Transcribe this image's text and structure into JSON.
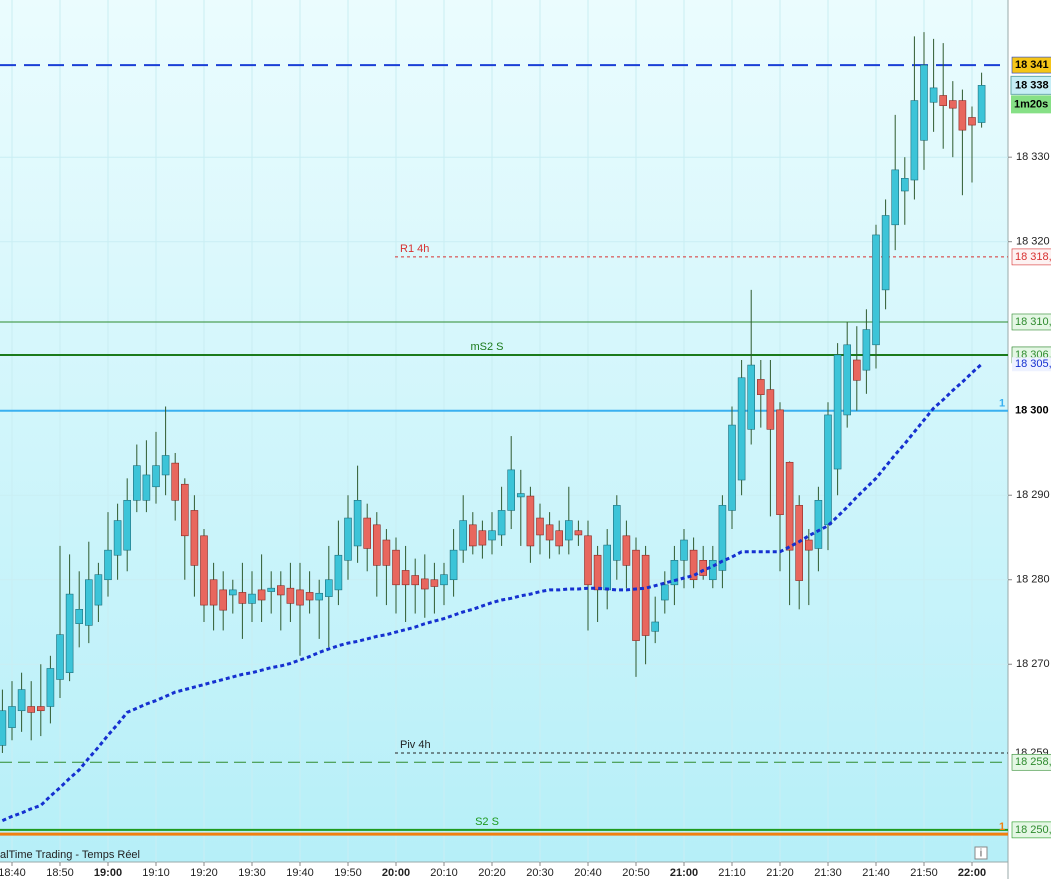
{
  "chart_data": {
    "type": "candlestick",
    "footer": "alTime Trading - Temps Réel",
    "info_icon": "i",
    "timer": "1m20s",
    "up_color": "#3cc4d8",
    "down_color": "#e8675e",
    "wick_color": "#2f5a2f",
    "grid": true,
    "ylim": [
      18246.6,
      18348.6
    ],
    "yticks": [
      {
        "value": 18330,
        "label": "18 330"
      },
      {
        "value": 18320,
        "label": "18 320"
      },
      {
        "value": 18290,
        "label": "18 290"
      },
      {
        "value": 18280,
        "label": "18 280"
      },
      {
        "value": 18270,
        "label": "18 270"
      }
    ],
    "categories": [
      null,
      "18:40",
      null,
      null,
      null,
      null,
      "18:50",
      null,
      null,
      null,
      null,
      "19:00",
      null,
      null,
      null,
      null,
      "19:10",
      null,
      null,
      null,
      null,
      "19:20",
      null,
      null,
      null,
      null,
      "19:30",
      null,
      null,
      null,
      null,
      "19:40",
      null,
      null,
      null,
      null,
      "19:50",
      null,
      null,
      null,
      null,
      "20:00",
      null,
      null,
      null,
      null,
      "20:10",
      null,
      null,
      null,
      null,
      "20:20",
      null,
      null,
      null,
      null,
      "20:30",
      null,
      null,
      null,
      null,
      "20:40",
      null,
      null,
      null,
      null,
      "20:50",
      null,
      null,
      null,
      null,
      "21:00",
      null,
      null,
      null,
      null,
      "21:10",
      null,
      null,
      null,
      null,
      "21:20",
      null,
      null,
      null,
      null,
      "21:30",
      null,
      null,
      null,
      null,
      "21:40",
      null,
      null,
      null,
      null,
      "21:50",
      null,
      null,
      null,
      null,
      "22:00",
      null
    ],
    "open": [
      18260.4,
      18262.5,
      18264.5,
      18265,
      18265,
      18265,
      18268.2,
      18269,
      18274.8,
      18274.6,
      18277,
      18280,
      18282.9,
      18283.5,
      18289.4,
      18289.4,
      18291,
      18292.4,
      18293.8,
      18291.3,
      18288.2,
      18285.2,
      18280,
      18278.8,
      18278.2,
      18278.5,
      18277.2,
      18278.8,
      18278.6,
      18279.3,
      18279,
      18278.8,
      18278.5,
      18277.6,
      18278,
      18278.8,
      18282.3,
      18284,
      18287.3,
      18286.5,
      18284.7,
      18283.5,
      18281.1,
      18280.5,
      18280.1,
      18280,
      18279.4,
      18280,
      18283.5,
      18286.5,
      18285.8,
      18284.7,
      18285.3,
      18288.2,
      18289.8,
      18289.9,
      18287.3,
      18286.5,
      18285.8,
      18284.7,
      18285.8,
      18285.2,
      18282.9,
      18278.8,
      18282.3,
      18285.2,
      18283.5,
      18282.9,
      18273.9,
      18277.6,
      18279.4,
      18282.3,
      18283.5,
      18282.3,
      18280,
      18281.1,
      18288.2,
      18291.8,
      18297.8,
      18303.7,
      18302.5,
      18300.1,
      18293.9,
      18288.8,
      18284.7,
      18283.7,
      18286.5,
      18293.1,
      18299.5,
      18306,
      18304.8,
      18307.8,
      18314.3,
      18322,
      18326,
      18327.3,
      18332,
      18336.5,
      18337.3,
      18336.7,
      18336.7,
      18334.7,
      18334.1
    ],
    "high": [
      18267,
      18268,
      18269,
      18268,
      18270,
      18271,
      18284,
      18283,
      18281,
      18284.5,
      18282,
      18288,
      18289,
      18292,
      18296,
      18296.5,
      18297.5,
      18300.5,
      18295,
      18292,
      18290,
      18286,
      18282,
      18281,
      18280,
      18282,
      18281,
      18283,
      18281,
      18281,
      18282,
      18282,
      18281,
      18280,
      18284,
      18287,
      18290,
      18293.5,
      18289,
      18288,
      18286,
      18285,
      18284,
      18282.5,
      18283,
      18282,
      18282,
      18286,
      18290,
      18288,
      18287,
      18288,
      18291,
      18297,
      18293,
      18291,
      18289,
      18288,
      18287,
      18291,
      18287,
      18287,
      18284,
      18286,
      18290,
      18287,
      18285,
      18284,
      18278,
      18281,
      18284,
      18286,
      18285,
      18284,
      18284,
      18290,
      18300.5,
      18306,
      18314.3,
      18306,
      18306,
      18301,
      18294,
      18290,
      18286,
      18291,
      18301,
      18308,
      18310.5,
      18310,
      18312,
      18322,
      18325,
      18335,
      18330,
      18344.3,
      18344.8,
      18344,
      18343.5,
      18339,
      18338,
      18336,
      18340
    ],
    "low": [
      18259.5,
      18261,
      18262,
      18261,
      18261.5,
      18263,
      18266,
      18268,
      18272,
      18272.5,
      18275,
      18278,
      18280,
      18281,
      18288,
      18288,
      18289,
      18290,
      18287,
      18280,
      18278,
      18275,
      18274,
      18274,
      18276,
      18273,
      18275,
      18275,
      18276,
      18274,
      18275,
      18271,
      18276,
      18273,
      18272,
      18277,
      18280,
      18282,
      18281,
      18278,
      18277,
      18276,
      18275,
      18276,
      18275.5,
      18276,
      18277,
      18278,
      18282,
      18283,
      18282.5,
      18283,
      18284,
      18286,
      18284,
      18282,
      18283,
      18282.5,
      18283,
      18283,
      18284,
      18274,
      18275,
      18276.5,
      18280,
      18279,
      18268.5,
      18270,
      18272.5,
      18276,
      18277,
      18279,
      18279,
      18280,
      18279,
      18279,
      18286,
      18290,
      18296,
      18298,
      18287.5,
      18281,
      18277,
      18276.5,
      18277,
      18281,
      18283.5,
      18290,
      18298,
      18300,
      18302,
      18305,
      18312,
      18319,
      18322,
      18325,
      18328.5,
      18333,
      18331,
      18330,
      18325.5,
      18327,
      18333.5
    ],
    "close": [
      18264.5,
      18265,
      18267,
      18264.3,
      18264.5,
      18269.5,
      18273.5,
      18278.3,
      18276.5,
      18280,
      18280.6,
      18283.5,
      18287,
      18289.4,
      18293.5,
      18292.4,
      18293.5,
      18294.7,
      18289.4,
      18285.2,
      18281.7,
      18277,
      18277,
      18276.4,
      18278.8,
      18277.2,
      18278.3,
      18277.6,
      18279,
      18278.2,
      18277.2,
      18277,
      18277.6,
      18278.4,
      18280,
      18282.9,
      18287.3,
      18289.4,
      18283.7,
      18281.7,
      18281.7,
      18279.4,
      18279.4,
      18279.4,
      18278.9,
      18279.2,
      18280.6,
      18283.5,
      18287,
      18284,
      18284.1,
      18285.8,
      18288.2,
      18293,
      18290.2,
      18284,
      18285.3,
      18284.7,
      18284,
      18287,
      18285.3,
      18279.4,
      18278.8,
      18284.1,
      18288.8,
      18281.7,
      18272.8,
      18273.4,
      18275,
      18279.4,
      18282.3,
      18284.7,
      18280,
      18280.5,
      18282.3,
      18288.8,
      18298.3,
      18303.9,
      18305.4,
      18301.9,
      18297.8,
      18287.7,
      18283.5,
      18279.9,
      18283.5,
      18289.4,
      18299.5,
      18306.6,
      18307.8,
      18303.6,
      18309.6,
      18320.8,
      18323.1,
      18328.5,
      18327.5,
      18336.7,
      18340.9,
      18338.2,
      18336.1,
      18335.8,
      18333.2,
      18333.8,
      18338.5
    ],
    "ma": {
      "color": "#1530d0",
      "label": "18 305,",
      "value": 18305.5,
      "values": [
        18251.5,
        18252.0,
        18252.4,
        18252.9,
        18253.3,
        18254.4,
        18255.4,
        18256.5,
        18257.5,
        18258.9,
        18260.2,
        18261.6,
        18262.9,
        18264.3,
        18264.8,
        18265.3,
        18265.7,
        18266.2,
        18266.7,
        18267.0,
        18267.3,
        18267.6,
        18267.9,
        18268.2,
        18268.5,
        18268.8,
        18269.0,
        18269.3,
        18269.6,
        18269.8,
        18270.1,
        18270.5,
        18270.9,
        18271.4,
        18271.8,
        18272.2,
        18272.5,
        18272.7,
        18273.0,
        18273.3,
        18273.5,
        18273.8,
        18274.1,
        18274.4,
        18274.8,
        18275.1,
        18275.4,
        18275.8,
        18276.2,
        18276.5,
        18276.9,
        18277.3,
        18277.6,
        18277.8,
        18278.1,
        18278.3,
        18278.6,
        18278.8,
        18278.8,
        18278.9,
        18278.9,
        18279.0,
        18279.0,
        18278.9,
        18278.8,
        18278.8,
        18278.9,
        18279.0,
        18279.3,
        18279.6,
        18279.9,
        18280.2,
        18280.5,
        18281.1,
        18281.6,
        18282.2,
        18282.7,
        18283.3,
        18283.3,
        18283.3,
        18283.3,
        18283.3,
        18283.9,
        18284.5,
        18285.2,
        18285.8,
        18286.4,
        18287.5,
        18288.6,
        18289.8,
        18290.9,
        18292.0,
        18293.4,
        18294.8,
        18296.1,
        18297.5,
        18298.9,
        18300.3,
        18301.3,
        18302.4,
        18303.4,
        18304.5,
        18305.5
      ]
    },
    "price_tag": {
      "value": 18338.5,
      "label": "18 338",
      "bg": "#c6eef6"
    },
    "levels": [
      {
        "value": 18340.9,
        "label": "18 341",
        "color": "#1a3fd6",
        "style": "dashed",
        "width": 2,
        "tag_bg": "#f5c518",
        "tag_fg": "#000000"
      },
      {
        "value": 18318.2,
        "name": "R1 4h",
        "label": "18 318,",
        "color": "#d83030",
        "style": "dotted",
        "width": 1,
        "tag_bg": "#fdf2f2",
        "tag_fg": "#d83030"
      },
      {
        "value": 18310.5,
        "label": "18 310,",
        "color": "#2e8b2e",
        "style": "solid",
        "width": 1,
        "tag_bg": "#e4f7e4",
        "tag_fg": "#2e8b2e"
      },
      {
        "value": 18306.6,
        "name": "mS2 S",
        "label": "18 306,",
        "color": "#1b7a1b",
        "style": "solid",
        "width": 2,
        "tag_bg": "#e4f7e4",
        "tag_fg": "#2e8b2e"
      },
      {
        "value": 18300,
        "label": "18 300",
        "color": "#3ab0f0",
        "style": "solid",
        "width": 2,
        "marker": "1",
        "tag_bg": "#ffffff",
        "tag_fg": "#000000"
      },
      {
        "value": 18259.5,
        "name": "Piv 4h",
        "label": "18 259,",
        "color": "#222222",
        "style": "dotted",
        "width": 1,
        "tag_bg": "#ffffff",
        "tag_fg": "#222222"
      },
      {
        "value": 18258.4,
        "label": "18 258,",
        "color": "#2e8b2e",
        "style": "longdash",
        "width": 1,
        "tag_bg": "#e4f7e4",
        "tag_fg": "#2e8b2e"
      },
      {
        "value": 18250.4,
        "name": "S2 S",
        "label": "18 250,",
        "color": "#1e9a1e",
        "style": "solid",
        "width": 2,
        "tag_bg": "#e4f7e4",
        "tag_fg": "#2e8b2e"
      },
      {
        "value": 18249.9,
        "color": "#f08010",
        "style": "solid",
        "width": 3,
        "marker": "1"
      }
    ]
  }
}
